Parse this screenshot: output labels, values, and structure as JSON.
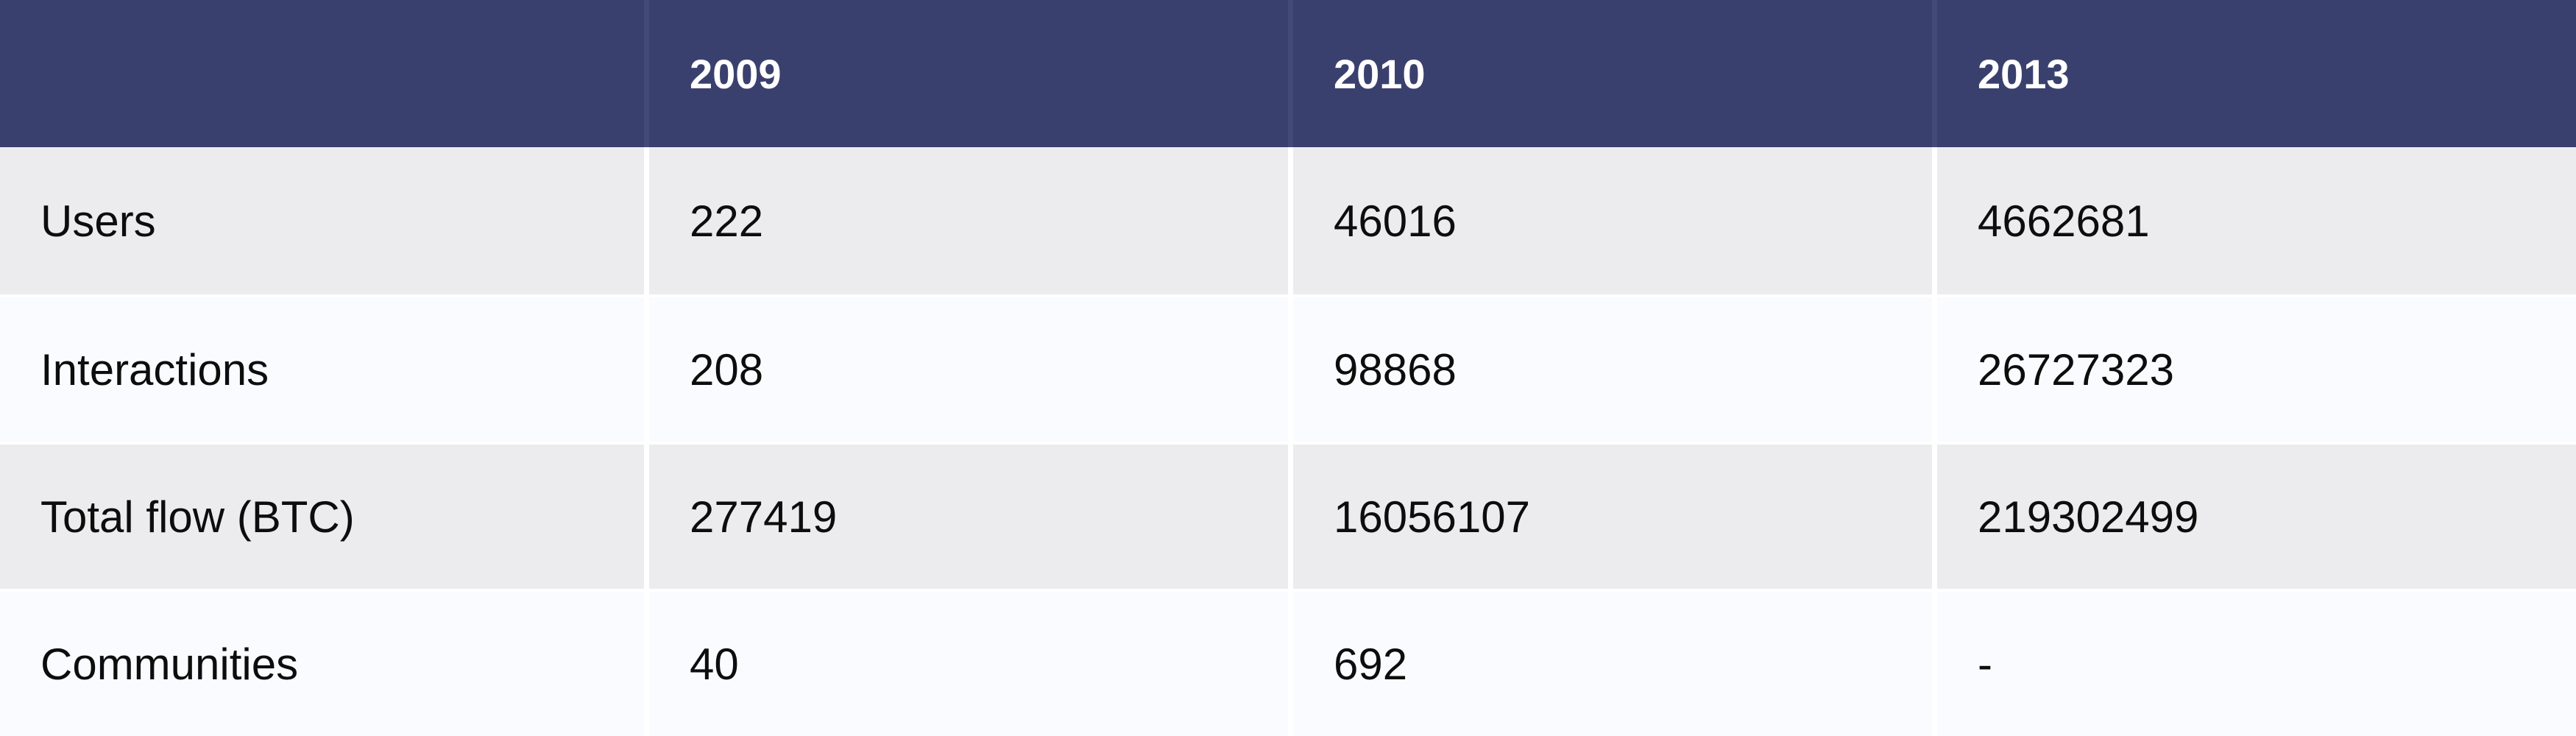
{
  "table": {
    "columns": [
      "",
      "2009",
      "2010",
      "2013"
    ],
    "rows": [
      {
        "label": "Users",
        "values": [
          "222",
          "46016",
          "4662681"
        ]
      },
      {
        "label": "Interactions",
        "values": [
          "208",
          "98868",
          "26727323"
        ]
      },
      {
        "label": "Total flow (BTC)",
        "values": [
          "277419",
          "16056107",
          "219302499"
        ]
      },
      {
        "label": "Communities",
        "values": [
          "40",
          "692",
          "-"
        ]
      }
    ]
  },
  "colors": {
    "header_bg": "#3a406e",
    "header_text": "#ffffff",
    "row_odd_bg": "#ececee",
    "row_even_bg": "#fafbfe",
    "text": "#0d0d0d"
  }
}
